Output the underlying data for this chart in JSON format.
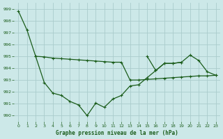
{
  "title": "Graphe pression niveau de la mer (hPa)",
  "bg_color": "#cce8e8",
  "grid_color": "#aacccc",
  "line_color": "#1a5c1a",
  "ylim": [
    989.5,
    999.5
  ],
  "yticks": [
    990,
    991,
    992,
    993,
    994,
    995,
    996,
    997,
    998,
    999
  ],
  "xlim": [
    -0.5,
    23.5
  ],
  "xticks": [
    0,
    1,
    2,
    3,
    4,
    5,
    6,
    7,
    8,
    9,
    10,
    11,
    12,
    13,
    14,
    15,
    16,
    17,
    18,
    19,
    20,
    21,
    22,
    23
  ],
  "series1_x": [
    0,
    1,
    2,
    3,
    4,
    5,
    6,
    7,
    8,
    9,
    10,
    11,
    12,
    13,
    14,
    15,
    16,
    17,
    18,
    19
  ],
  "series1_y": [
    998.8,
    997.2,
    995.0,
    992.8,
    991.9,
    991.7,
    991.2,
    990.9,
    990.0,
    991.05,
    990.7,
    991.4,
    991.7,
    992.5,
    992.6,
    993.2,
    993.8,
    994.4,
    994.4,
    994.5
  ],
  "series2_x": [
    2,
    3,
    4,
    5,
    6,
    7,
    8,
    9,
    10,
    11,
    12,
    13,
    14,
    15,
    16,
    17,
    18,
    19,
    20,
    21,
    22,
    23
  ],
  "series2_y": [
    995.0,
    994.95,
    994.85,
    994.8,
    994.75,
    994.7,
    994.65,
    994.6,
    994.55,
    994.5,
    994.5,
    993.0,
    993.0,
    993.05,
    993.1,
    993.15,
    993.2,
    993.25,
    993.3,
    993.35,
    993.35,
    993.4
  ],
  "series3_x": [
    15,
    16,
    17,
    18,
    19,
    20,
    21,
    22,
    23
  ],
  "series3_y": [
    995.0,
    993.8,
    994.4,
    994.4,
    994.5,
    995.1,
    994.65,
    993.7,
    993.4
  ]
}
